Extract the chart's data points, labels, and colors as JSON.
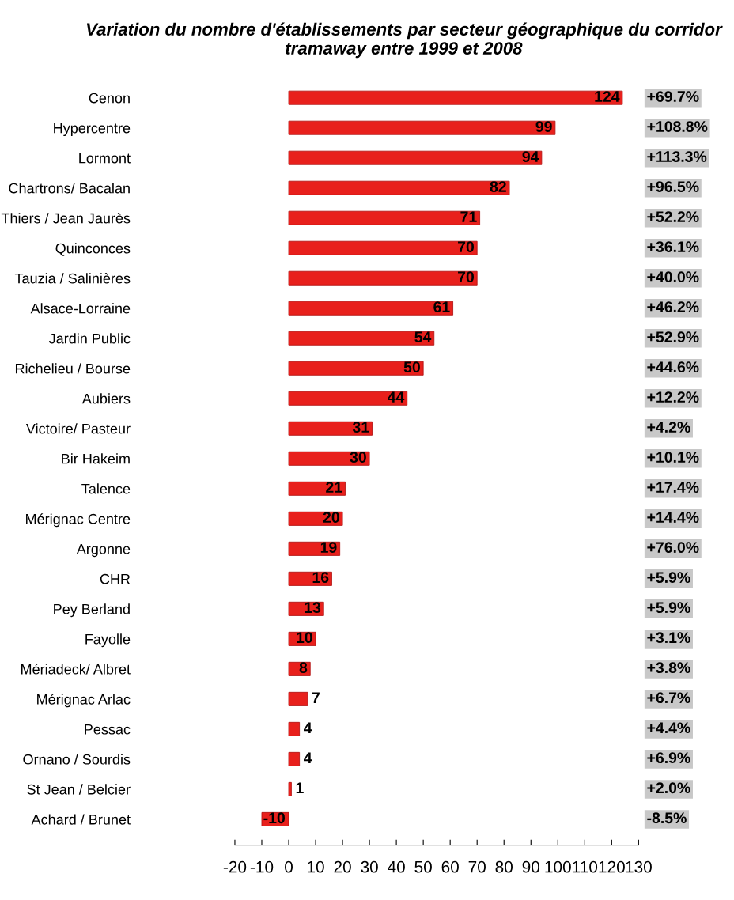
{
  "chart_data": {
    "type": "bar",
    "orientation": "horizontal",
    "title": "Variation du nombre d'établissements par secteur géographique du corridor tramaway entre 1999 et 2008",
    "categories": [
      "Cenon",
      "Hypercentre",
      "Lormont",
      "Chartrons/ Bacalan",
      "Thiers / Jean Jaurès",
      "Quinconces",
      "Tauzia / Salinières",
      "Alsace-Lorraine",
      "Jardin Public",
      "Richelieu / Bourse",
      "Aubiers",
      "Victoire/ Pasteur",
      "Bir Hakeim",
      "Talence",
      "Mérignac Centre",
      "Argonne",
      "CHR",
      "Pey Berland",
      "Fayolle",
      "Mériadeck/ Albret",
      "Mérignac Arlac",
      "Pessac",
      "Ornano / Sourdis",
      "St Jean / Belcier",
      "Achard / Brunet"
    ],
    "values": [
      124,
      99,
      94,
      82,
      71,
      70,
      70,
      61,
      54,
      50,
      44,
      31,
      30,
      21,
      20,
      19,
      16,
      13,
      10,
      8,
      7,
      4,
      4,
      1,
      -10
    ],
    "color": "#e8201c",
    "data_labels": true,
    "annotations": [
      "+69.7%",
      "+108.8%",
      "+113.3%",
      "+96.5%",
      "+52.2%",
      "+36.1%",
      "+40.0%",
      "+46.2%",
      "+52.9%",
      "+44.6%",
      "+12.2%",
      "+4.2%",
      "+10.1%",
      "+17.4%",
      "+14.4%",
      "+76.0%",
      "+5.9%",
      "+5.9%",
      "+3.1%",
      "+3.8%",
      "+6.7%",
      "+4.4%",
      "+6.9%",
      "+2.0%",
      "-8.5%"
    ],
    "xlim": [
      -20,
      130
    ],
    "xticks": [
      -20,
      -10,
      0,
      10,
      20,
      30,
      40,
      50,
      60,
      70,
      80,
      90,
      100,
      110,
      120,
      130
    ],
    "grid": false
  }
}
